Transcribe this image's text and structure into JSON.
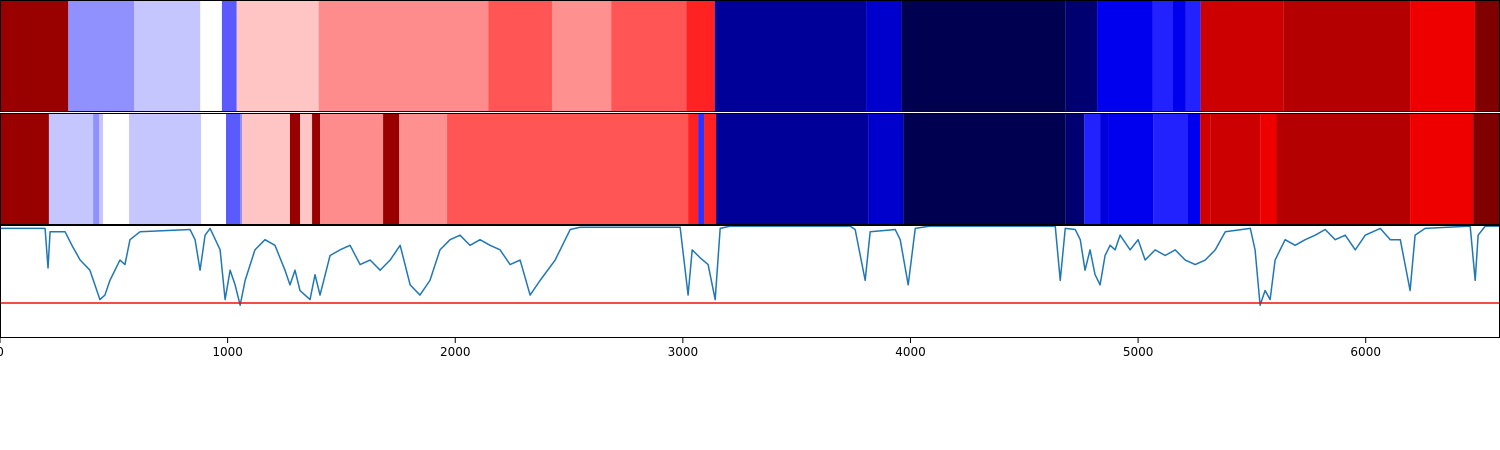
{
  "chart_data": [
    {
      "type": "band",
      "xlim": [
        0,
        6590
      ],
      "edges": [
        0,
        300,
        590,
        880,
        975,
        1040,
        1400,
        2145,
        2425,
        2685,
        3015,
        3140,
        3805,
        3960,
        4680,
        4820,
        5065,
        5150,
        5210,
        5275,
        5640,
        6195,
        6480,
        6590
      ],
      "colors": [
        "#990000",
        "#9090ff",
        "#c6c6ff",
        "#ffffff",
        "#5a5aff",
        "#ffc4c4",
        "#ff8c8c",
        "#ff5555",
        "#ff9090",
        "#ff5555",
        "#ff2222",
        "#000099",
        "#0000cc",
        "#000050",
        "#000070",
        "#0000ee",
        "#2222ff",
        "#0000ee",
        "#2222ff",
        "#cc0000",
        "#b40000",
        "#ee0000",
        "#800000"
      ]
    },
    {
      "type": "band",
      "xlim": [
        0,
        6590
      ],
      "edges": [
        0,
        215,
        409,
        435,
        453,
        567,
        883,
        993,
        1055,
        1063,
        1274,
        1318,
        1371,
        1406,
        1683,
        1753,
        1964,
        3023,
        3067,
        3093,
        3146,
        3814,
        3968,
        4680,
        4763,
        4833,
        4868,
        5066,
        5216,
        5273,
        5317,
        5537,
        5608,
        6195,
        6472,
        6590
      ],
      "colors": [
        "#990000",
        "#c6c6ff",
        "#9090ff",
        "#c6c6ff",
        "#ffffff",
        "#c6c6ff",
        "#ffffff",
        "#5a5aff",
        "#8a8aff",
        "#ffc4c4",
        "#990000",
        "#ffc4c4",
        "#990000",
        "#ff8c8c",
        "#990000",
        "#ff9090",
        "#ff5555",
        "#ff2222",
        "#3030ff",
        "#ff2222",
        "#000099",
        "#0000cc",
        "#000050",
        "#000070",
        "#2222ff",
        "#0000dd",
        "#0000ee",
        "#2222ff",
        "#0000ee",
        "#d00000",
        "#cc0000",
        "#ee0000",
        "#b40000",
        "#ee0000",
        "#800000"
      ]
    },
    {
      "type": "line",
      "xlim": [
        0,
        6590
      ],
      "ylim": [
        0,
        1
      ],
      "xticks": [
        0,
        1000,
        2000,
        3000,
        4000,
        5000,
        6000
      ],
      "threshold": 0.31,
      "threshold_color": "#ee1111",
      "series": [
        {
          "color": "#1f77b4",
          "x": [
            0,
            198,
            211,
            220,
            286,
            316,
            352,
            395,
            417,
            439,
            461,
            483,
            527,
            549,
            571,
            615,
            835,
            857,
            879,
            901,
            923,
            967,
            989,
            1011,
            1033,
            1055,
            1077,
            1120,
            1164,
            1208,
            1252,
            1274,
            1296,
            1318,
            1362,
            1384,
            1406,
            1450,
            1494,
            1538,
            1582,
            1626,
            1670,
            1714,
            1758,
            1802,
            1845,
            1889,
            1933,
            1977,
            2021,
            2065,
            2109,
            2153,
            2197,
            2241,
            2285,
            2329,
            2373,
            2439,
            2505,
            2549,
            2988,
            3023,
            3041,
            3076,
            3111,
            3142,
            3164,
            3208,
            3735,
            3757,
            3801,
            3823,
            3933,
            3955,
            3990,
            4021,
            4086,
            4636,
            4658,
            4680,
            4724,
            4746,
            4767,
            4789,
            4811,
            4833,
            4855,
            4877,
            4899,
            4921,
            4965,
            5000,
            5031,
            5075,
            5119,
            5163,
            5207,
            5251,
            5295,
            5339,
            5383,
            5493,
            5514,
            5536,
            5558,
            5580,
            5602,
            5646,
            5690,
            5734,
            5778,
            5822,
            5866,
            5910,
            5954,
            5998,
            6064,
            6108,
            6152,
            6195,
            6217,
            6261,
            6459,
            6481,
            6494,
            6525,
            6590
          ],
          "values": [
            0.97,
            0.97,
            0.62,
            0.94,
            0.94,
            0.82,
            0.69,
            0.6,
            0.47,
            0.34,
            0.38,
            0.51,
            0.69,
            0.65,
            0.87,
            0.94,
            0.96,
            0.87,
            0.6,
            0.91,
            0.97,
            0.78,
            0.34,
            0.6,
            0.47,
            0.29,
            0.51,
            0.78,
            0.87,
            0.82,
            0.6,
            0.47,
            0.6,
            0.42,
            0.34,
            0.56,
            0.38,
            0.73,
            0.78,
            0.82,
            0.65,
            0.69,
            0.6,
            0.69,
            0.82,
            0.47,
            0.38,
            0.51,
            0.78,
            0.87,
            0.91,
            0.82,
            0.87,
            0.82,
            0.78,
            0.65,
            0.69,
            0.38,
            0.51,
            0.69,
            0.96,
            0.98,
            0.98,
            0.38,
            0.78,
            0.71,
            0.65,
            0.34,
            0.97,
            0.99,
            0.99,
            0.96,
            0.51,
            0.94,
            0.96,
            0.87,
            0.47,
            0.97,
            0.99,
            0.99,
            0.51,
            0.97,
            0.96,
            0.87,
            0.6,
            0.78,
            0.56,
            0.47,
            0.73,
            0.82,
            0.78,
            0.91,
            0.78,
            0.87,
            0.69,
            0.78,
            0.73,
            0.78,
            0.69,
            0.65,
            0.69,
            0.78,
            0.94,
            0.97,
            0.78,
            0.29,
            0.42,
            0.34,
            0.69,
            0.87,
            0.82,
            0.87,
            0.91,
            0.96,
            0.87,
            0.91,
            0.78,
            0.91,
            0.97,
            0.87,
            0.87,
            0.42,
            0.91,
            0.97,
            0.99,
            0.51,
            0.91,
            0.99,
            0.99
          ]
        }
      ]
    }
  ]
}
